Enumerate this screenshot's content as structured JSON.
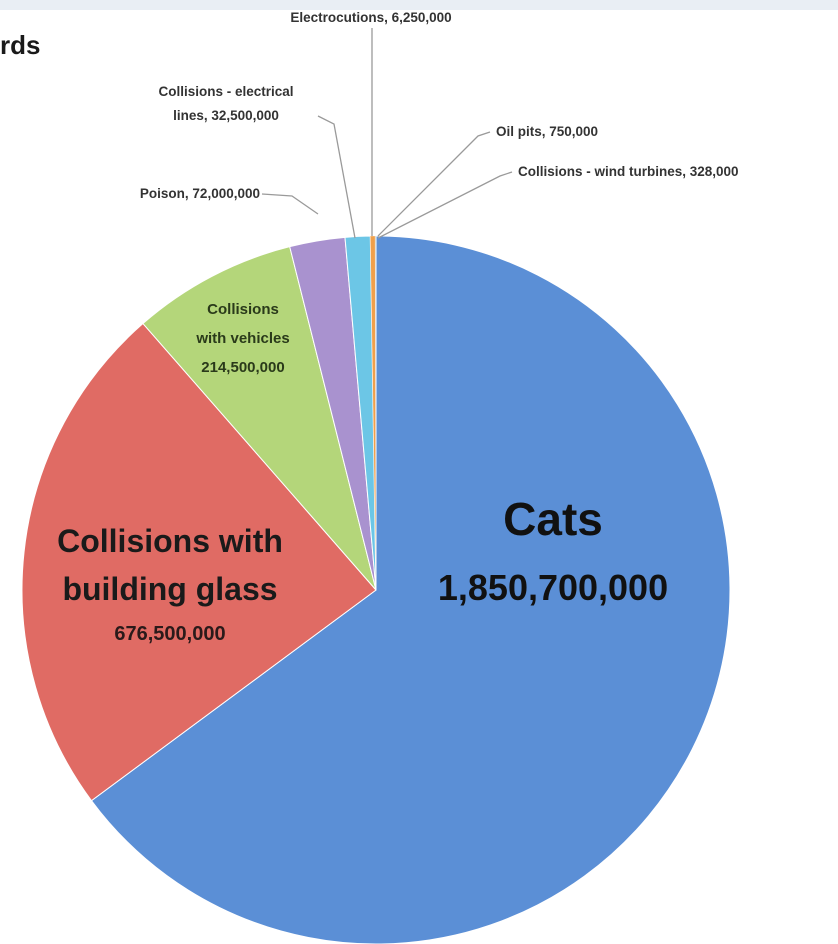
{
  "header": {
    "title_fragment": "rds"
  },
  "chart_data": {
    "type": "pie",
    "title": "",
    "slices": [
      {
        "label": "Cats",
        "value": 1850700000,
        "value_label": "1,850,700,000",
        "color": "#5b8fd6"
      },
      {
        "label": "Collisions with building glass",
        "label_lines": [
          "Collisions with",
          "building glass"
        ],
        "value": 676500000,
        "value_label": "676,500,000",
        "color": "#e06b64"
      },
      {
        "label": "Collisions with vehicles",
        "label_lines": [
          "Collisions",
          "with vehicles"
        ],
        "value": 214500000,
        "value_label": "214,500,000",
        "color": "#b4d67a"
      },
      {
        "label": "Poison",
        "value": 72000000,
        "value_label": "72,000,000",
        "color": "#a992cf"
      },
      {
        "label": "Collisions - electrical lines",
        "label_lines": [
          "Collisions - electrical",
          "lines,"
        ],
        "value": 32500000,
        "value_label": "32,500,000",
        "color": "#6cc6e6"
      },
      {
        "label": "Electrocutions",
        "value": 6250000,
        "value_label": "6,250,000",
        "color": "#f0a04b"
      },
      {
        "label": "Oil pits",
        "value": 750000,
        "value_label": "750,000",
        "color": "#7a9a5a"
      },
      {
        "label": "Collisions - wind turbines",
        "value": 328000,
        "value_label": "328,000",
        "color": "#c0504d"
      }
    ]
  }
}
